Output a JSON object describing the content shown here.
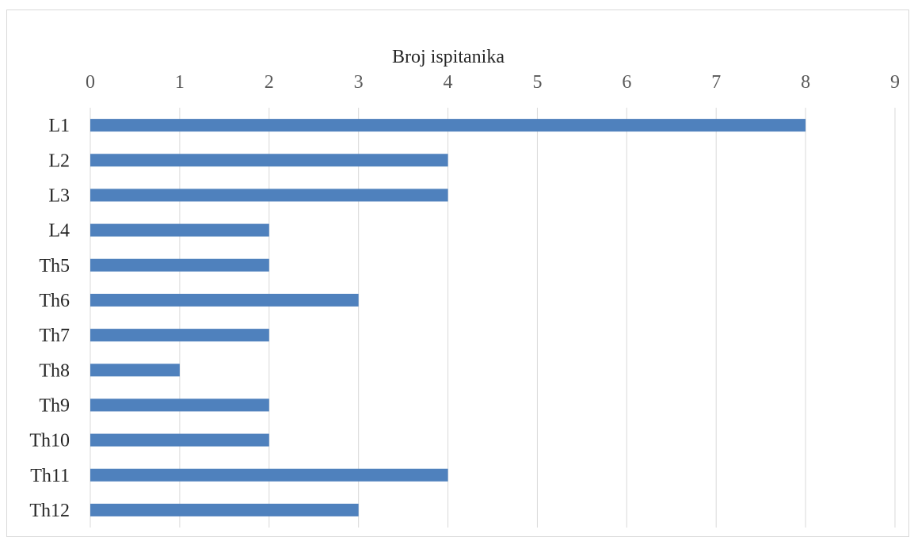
{
  "chart_data": {
    "type": "bar",
    "orientation": "horizontal",
    "title": "",
    "xlabel": "Broj ispitanika",
    "ylabel": "",
    "xaxis_position": "top",
    "xlim": [
      0,
      9
    ],
    "xticks": [
      0,
      1,
      2,
      3,
      4,
      5,
      6,
      7,
      8,
      9
    ],
    "grid": true,
    "legend": "none",
    "bar_color": "#4f81bd",
    "categories": [
      "L1",
      "L2",
      "L3",
      "L4",
      "Th5",
      "Th6",
      "Th7",
      "Th8",
      "Th9",
      "Th10",
      "Th11",
      "Th12"
    ],
    "values": [
      8,
      4,
      4,
      2,
      2,
      3,
      2,
      1,
      2,
      2,
      4,
      3
    ]
  }
}
